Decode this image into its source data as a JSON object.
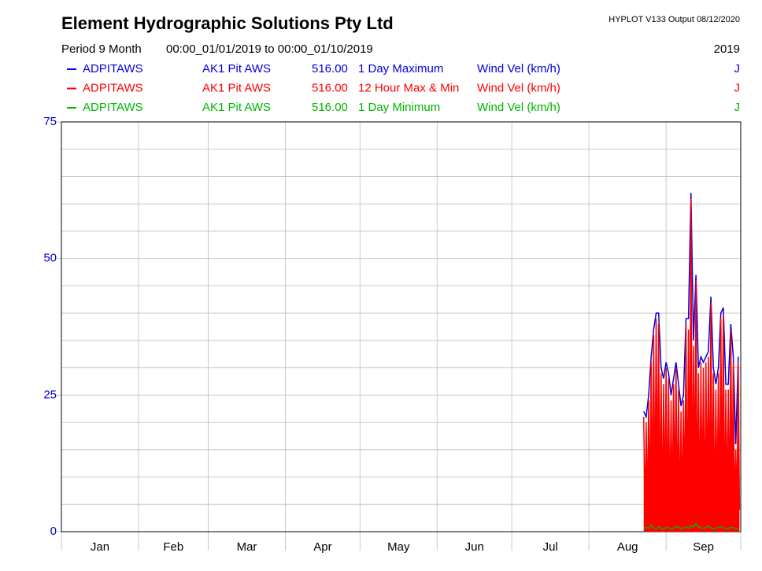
{
  "chart_data": {
    "type": "line",
    "title": "Element Hydrographic Solutions Pty Ltd",
    "software": "HYPLOT V133  Output 08/12/2020",
    "period_label": "Period   9 Month",
    "period_range": "00:00_01/01/2019 to 00:00_01/10/2019",
    "year": "2019",
    "categories": [
      "Jan",
      "Feb",
      "Mar",
      "Apr",
      "May",
      "Jun",
      "Jul",
      "Aug",
      "Sep"
    ],
    "xlim": [
      0,
      273
    ],
    "xgrid": [
      0,
      31,
      59,
      90,
      120,
      151,
      181,
      212,
      243,
      273
    ],
    "ylim": [
      0,
      75
    ],
    "yticks": [
      0,
      25,
      50,
      75
    ],
    "ygrid": [
      5,
      10,
      15,
      20,
      30,
      35,
      40,
      45,
      55,
      60,
      65,
      70
    ],
    "ytick_color": "#0000c8",
    "series": [
      {
        "name": "ADPITAWS",
        "site": "AK1 Pit AWS",
        "datum": "516.00",
        "description": "1 Day Maximum",
        "variable": "Wind Vel (km/h)",
        "code": "J",
        "color": "#0000e0",
        "x": [
          234,
          235,
          236,
          237,
          238,
          239,
          240,
          241,
          242,
          243,
          244,
          245,
          246,
          247,
          248,
          249,
          250,
          251,
          252,
          253,
          254,
          255,
          256,
          257,
          258,
          259,
          260,
          261,
          262,
          263,
          264,
          265,
          266,
          267,
          268,
          269,
          270,
          271,
          272
        ],
        "values": [
          22,
          21,
          25,
          32,
          37,
          40,
          40,
          30,
          28,
          31,
          29,
          25,
          28,
          31,
          27,
          23,
          25,
          39,
          39,
          62,
          35,
          47,
          30,
          32,
          31,
          32,
          33,
          43,
          30,
          27,
          30,
          40,
          41,
          27,
          27,
          38,
          32,
          16,
          32
        ]
      },
      {
        "name": "ADPITAWS",
        "site": "AK1 Pit AWS",
        "datum": "516.00",
        "description": "12 Hour Max & Min",
        "variable": "Wind Vel (km/h)",
        "code": "J",
        "color": "#ff0000",
        "x": [
          234,
          234.5,
          235,
          235.5,
          236,
          236.5,
          237,
          237.5,
          238,
          238.5,
          239,
          239.5,
          240,
          240.5,
          241,
          241.5,
          242,
          242.5,
          243,
          243.5,
          244,
          244.5,
          245,
          245.5,
          246,
          246.5,
          247,
          247.5,
          248,
          248.5,
          249,
          249.5,
          250,
          250.5,
          251,
          251.5,
          252,
          252.5,
          253,
          253.5,
          254,
          254.5,
          255,
          255.5,
          256,
          256.5,
          257,
          257.5,
          258,
          258.5,
          259,
          259.5,
          260,
          260.5,
          261,
          261.5,
          262,
          262.5,
          263,
          263.5,
          264,
          264.5,
          265,
          265.5,
          266,
          266.5,
          267,
          267.5,
          268,
          268.5,
          269,
          269.5,
          270,
          270.5,
          271,
          271.5,
          272,
          272.5
        ],
        "values": [
          21,
          3,
          20,
          4,
          24,
          5,
          31,
          6,
          36,
          4,
          39,
          8,
          38,
          5,
          29,
          3,
          27,
          6,
          30,
          4,
          28,
          3,
          24,
          5,
          27,
          7,
          30,
          4,
          26,
          3,
          22,
          5,
          24,
          6,
          38,
          4,
          37,
          8,
          61,
          3,
          34,
          9,
          46,
          5,
          29,
          4,
          31,
          6,
          30,
          3,
          31,
          7,
          32,
          4,
          42,
          6,
          29,
          3,
          26,
          5,
          29,
          4,
          39,
          7,
          40,
          3,
          26,
          5,
          26,
          4,
          37,
          8,
          31,
          3,
          15,
          5,
          31,
          4
        ]
      },
      {
        "name": "ADPITAWS",
        "site": "AK1 Pit AWS",
        "datum": "516.00",
        "description": "1 Day Minimum",
        "variable": "Wind Vel (km/h)",
        "code": "J",
        "color": "#00b400",
        "x": [
          234,
          235,
          236,
          237,
          238,
          239,
          240,
          241,
          242,
          243,
          244,
          245,
          246,
          247,
          248,
          249,
          250,
          251,
          252,
          253,
          254,
          255,
          256,
          257,
          258,
          259,
          260,
          261,
          262,
          263,
          264,
          265,
          266,
          267,
          268,
          269,
          270,
          271,
          272
        ],
        "values": [
          0.5,
          0.8,
          0.6,
          1.2,
          0.7,
          0.5,
          0.9,
          0.6,
          0.4,
          0.8,
          0.7,
          0.5,
          0.6,
          1.0,
          0.8,
          0.5,
          0.7,
          0.9,
          0.6,
          1.1,
          0.8,
          1.5,
          0.9,
          0.7,
          0.6,
          0.8,
          1.0,
          0.7,
          0.5,
          0.6,
          0.8,
          0.9,
          0.7,
          0.5,
          0.6,
          0.8,
          0.7,
          0.5,
          0.6
        ]
      }
    ]
  }
}
